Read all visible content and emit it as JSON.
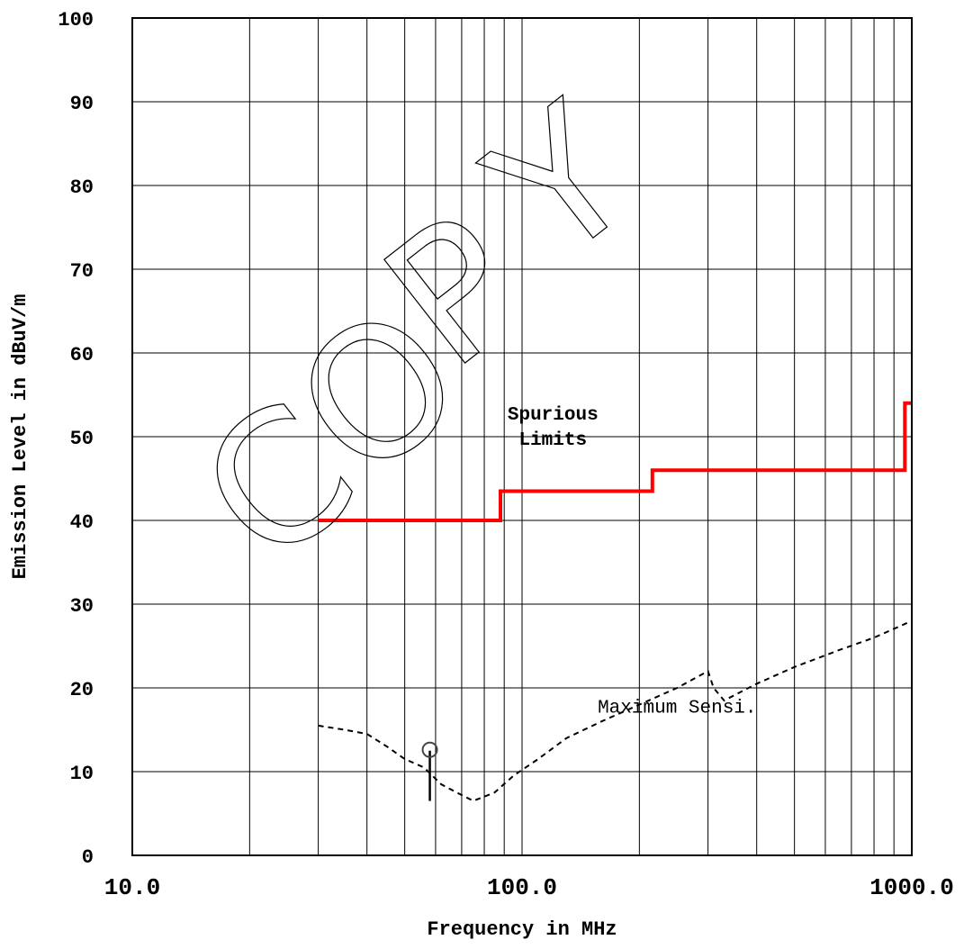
{
  "watermark": "COPY",
  "chart_data": {
    "type": "line",
    "xlabel": "Frequency in MHz",
    "ylabel": "Emission Level in dBuV/m",
    "xscale": "log",
    "xlim": [
      10,
      1000
    ],
    "ylim": [
      0,
      100
    ],
    "x_ticks": [
      10,
      100,
      1000
    ],
    "x_tick_labels": [
      "10.0",
      "100.0",
      "1000.0"
    ],
    "y_ticks": [
      0,
      10,
      20,
      30,
      40,
      50,
      60,
      70,
      80,
      90,
      100
    ],
    "y_tick_labels": [
      "0",
      "10",
      "20",
      "30",
      "40",
      "50",
      "60",
      "70",
      "80",
      "90",
      "100"
    ],
    "grid": true,
    "series": [
      {
        "id": "spurious_limits",
        "color": "#ff0000",
        "style": "solid",
        "step": true,
        "x": [
          30,
          88,
          88,
          216,
          216,
          960,
          960,
          1000
        ],
        "y": [
          40,
          40,
          43.5,
          43.5,
          46,
          46,
          54,
          54
        ]
      },
      {
        "id": "max_sensitivity",
        "color": "#000000",
        "style": "dashed",
        "x": [
          30,
          35,
          40,
          45,
          50,
          56,
          62,
          68,
          75,
          85,
          95,
          110,
          130,
          160,
          200,
          250,
          300,
          310,
          330,
          400,
          500,
          650,
          800,
          1000
        ],
        "y": [
          15.5,
          15,
          14.5,
          13,
          11.5,
          10.5,
          8.5,
          7.5,
          6.5,
          7.5,
          9.5,
          11.5,
          14,
          16,
          18,
          20,
          22,
          20,
          18.5,
          20.5,
          22.5,
          24.5,
          26,
          28
        ]
      }
    ],
    "markers": [
      {
        "id": "measurement",
        "x": 58,
        "y_base": 6.5,
        "y_top": 12.5
      }
    ],
    "annotations": [
      {
        "id": "limit_label_line1",
        "text": "Spurious",
        "x": 120,
        "y": 52.8,
        "bold": true
      },
      {
        "id": "limit_label_line2",
        "text": "Limits",
        "x": 120,
        "y": 49.8,
        "bold": true
      },
      {
        "id": "sensitivity_label",
        "text": "Maximum Sensi.",
        "x": 250,
        "y": 17.8,
        "bold": false
      }
    ]
  }
}
